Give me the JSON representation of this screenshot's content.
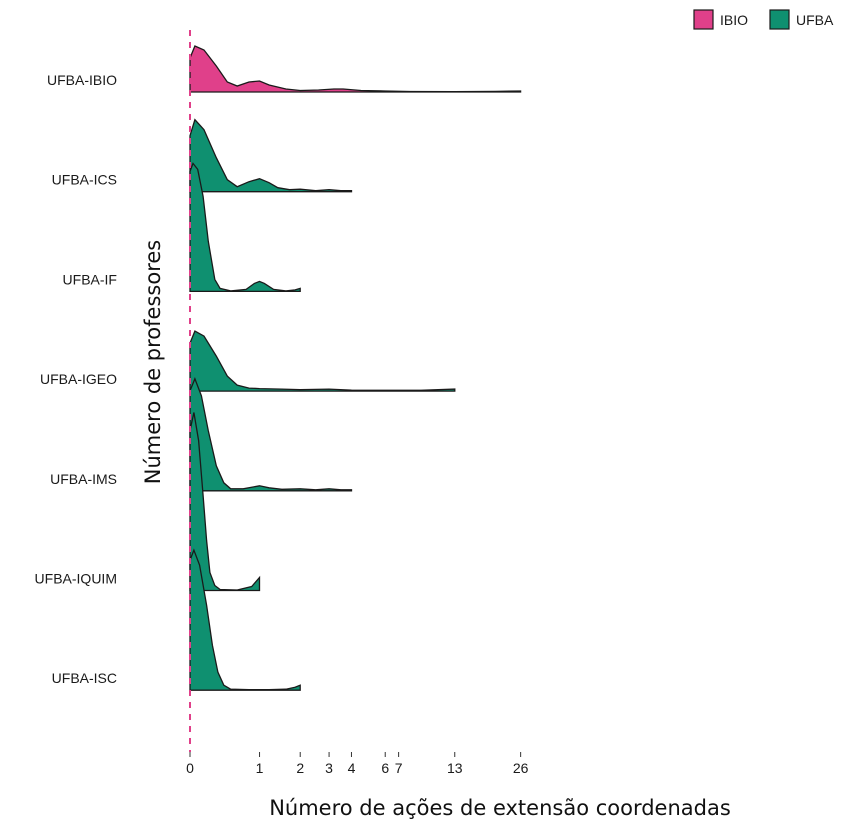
{
  "chart_data": {
    "type": "ridgeline",
    "xlabel": "Número de ações de extensão coordenadas",
    "ylabel": "Número de professores",
    "x_ticks": [
      0,
      1,
      2,
      3,
      4,
      6,
      7,
      13,
      26
    ],
    "x_scale": "pseudo-log",
    "reference_line_x": 0,
    "legend": {
      "placement": "top-right",
      "entries": [
        {
          "name": "IBIO",
          "color": "#e0408a"
        },
        {
          "name": "UFBA",
          "color": "#0f9070"
        }
      ]
    },
    "series": [
      {
        "name": "UFBA-IBIO",
        "group": "IBIO",
        "color": "#e0408a",
        "max_x": 26,
        "density": [
          [
            0,
            0.34
          ],
          [
            0.05,
            0.46
          ],
          [
            0.15,
            0.42
          ],
          [
            0.3,
            0.26
          ],
          [
            0.45,
            0.1
          ],
          [
            0.6,
            0.06
          ],
          [
            0.8,
            0.1
          ],
          [
            1,
            0.11
          ],
          [
            1.2,
            0.07
          ],
          [
            1.6,
            0.03
          ],
          [
            2,
            0.015
          ],
          [
            2.6,
            0.02
          ],
          [
            3.2,
            0.03
          ],
          [
            3.6,
            0.03
          ],
          [
            4.5,
            0.015
          ],
          [
            6,
            0.01
          ],
          [
            8,
            0.005
          ],
          [
            13,
            0.004
          ],
          [
            20,
            0.006
          ],
          [
            26,
            0.01
          ]
        ]
      },
      {
        "name": "UFBA-ICS",
        "group": "UFBA",
        "color": "#0f9070",
        "max_x": 4,
        "density": [
          [
            0,
            0.56
          ],
          [
            0.05,
            0.72
          ],
          [
            0.15,
            0.62
          ],
          [
            0.3,
            0.34
          ],
          [
            0.45,
            0.12
          ],
          [
            0.6,
            0.05
          ],
          [
            0.8,
            0.1
          ],
          [
            1,
            0.13
          ],
          [
            1.2,
            0.09
          ],
          [
            1.4,
            0.04
          ],
          [
            1.7,
            0.02
          ],
          [
            2,
            0.025
          ],
          [
            2.5,
            0.01
          ],
          [
            3,
            0.02
          ],
          [
            3.5,
            0.01
          ],
          [
            4,
            0.01
          ]
        ]
      },
      {
        "name": "UFBA-IF",
        "group": "UFBA",
        "color": "#0f9070",
        "max_x": 2,
        "density": [
          [
            0,
            1.2
          ],
          [
            0.03,
            1.28
          ],
          [
            0.08,
            1.22
          ],
          [
            0.14,
            0.95
          ],
          [
            0.2,
            0.5
          ],
          [
            0.28,
            0.12
          ],
          [
            0.35,
            0.03
          ],
          [
            0.5,
            0.005
          ],
          [
            0.75,
            0.02
          ],
          [
            0.9,
            0.08
          ],
          [
            1,
            0.1
          ],
          [
            1.1,
            0.08
          ],
          [
            1.3,
            0.02
          ],
          [
            1.6,
            0.005
          ],
          [
            1.85,
            0.015
          ],
          [
            2,
            0.03
          ]
        ]
      },
      {
        "name": "UFBA-IGEO",
        "group": "UFBA",
        "color": "#0f9070",
        "max_x": 13,
        "density": [
          [
            0,
            0.48
          ],
          [
            0.05,
            0.6
          ],
          [
            0.15,
            0.55
          ],
          [
            0.3,
            0.35
          ],
          [
            0.45,
            0.15
          ],
          [
            0.6,
            0.06
          ],
          [
            0.8,
            0.03
          ],
          [
            1,
            0.025
          ],
          [
            1.5,
            0.02
          ],
          [
            2,
            0.015
          ],
          [
            3,
            0.02
          ],
          [
            4,
            0.01
          ],
          [
            6,
            0.008
          ],
          [
            9,
            0.008
          ],
          [
            13,
            0.02
          ]
        ]
      },
      {
        "name": "UFBA-IMS",
        "group": "UFBA",
        "color": "#0f9070",
        "max_x": 4,
        "density": [
          [
            0,
            1.0
          ],
          [
            0.05,
            1.12
          ],
          [
            0.12,
            0.95
          ],
          [
            0.2,
            0.6
          ],
          [
            0.3,
            0.25
          ],
          [
            0.4,
            0.08
          ],
          [
            0.5,
            0.02
          ],
          [
            0.7,
            0.02
          ],
          [
            1,
            0.05
          ],
          [
            1.2,
            0.03
          ],
          [
            1.5,
            0.015
          ],
          [
            2,
            0.02
          ],
          [
            2.5,
            0.01
          ],
          [
            3,
            0.02
          ],
          [
            3.5,
            0.01
          ],
          [
            4,
            0.01
          ]
        ]
      },
      {
        "name": "UFBA-IQUIM",
        "group": "UFBA",
        "color": "#0f9070",
        "max_x": 1,
        "density": [
          [
            0,
            1.6
          ],
          [
            0.04,
            1.78
          ],
          [
            0.09,
            1.5
          ],
          [
            0.14,
            0.95
          ],
          [
            0.18,
            0.5
          ],
          [
            0.22,
            0.18
          ],
          [
            0.28,
            0.05
          ],
          [
            0.35,
            0.01
          ],
          [
            0.6,
            0.005
          ],
          [
            0.85,
            0.04
          ],
          [
            1,
            0.13
          ]
        ]
      },
      {
        "name": "UFBA-ISC",
        "group": "UFBA",
        "color": "#0f9070",
        "max_x": 2,
        "density": [
          [
            0,
            1.3
          ],
          [
            0.04,
            1.4
          ],
          [
            0.1,
            1.25
          ],
          [
            0.18,
            0.85
          ],
          [
            0.25,
            0.45
          ],
          [
            0.32,
            0.18
          ],
          [
            0.4,
            0.05
          ],
          [
            0.5,
            0.01
          ],
          [
            0.8,
            0.005
          ],
          [
            1.2,
            0.005
          ],
          [
            1.6,
            0.01
          ],
          [
            1.85,
            0.03
          ],
          [
            2,
            0.05
          ]
        ]
      }
    ]
  }
}
